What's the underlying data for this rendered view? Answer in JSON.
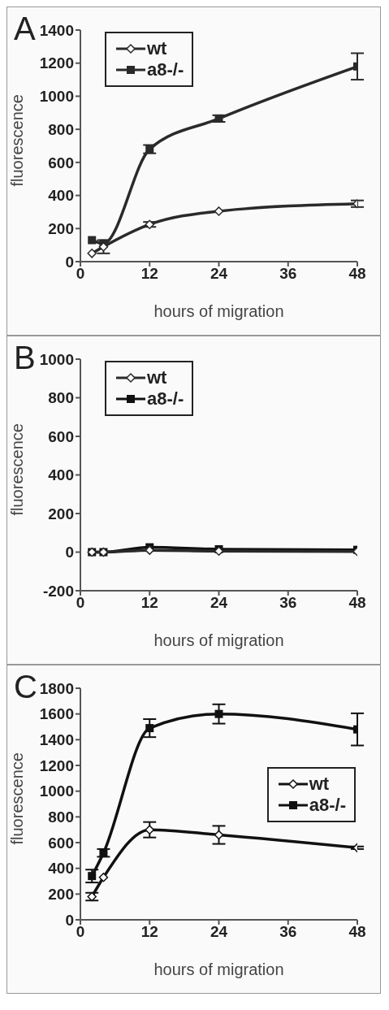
{
  "chart_data": [
    {
      "type": "line",
      "title": "A",
      "xlabel": "hours of migration",
      "ylabel": "fluorescence",
      "x": [
        2,
        4,
        12,
        24,
        48
      ],
      "xlim": [
        0,
        48
      ],
      "xticks": [
        0,
        12,
        24,
        36,
        48
      ],
      "ylim": [
        0,
        1400
      ],
      "yticks": [
        0,
        200,
        400,
        600,
        800,
        1000,
        1200,
        1400
      ],
      "legend": "top left",
      "grid": false,
      "series": [
        {
          "name": "wt",
          "color": "#2a2a2a",
          "marker": "diamond",
          "values": [
            50,
            90,
            225,
            305,
            350
          ],
          "errors": [
            null,
            40,
            15,
            null,
            20
          ]
        },
        {
          "name": "a8-/-",
          "color": "#2a2a2a",
          "marker": "square",
          "values": [
            130,
            110,
            680,
            865,
            1180
          ],
          "errors": [
            null,
            null,
            25,
            20,
            80
          ]
        }
      ]
    },
    {
      "type": "line",
      "title": "B",
      "xlabel": "hours of migration",
      "ylabel": "fluorescence",
      "x": [
        2,
        4,
        12,
        24,
        48
      ],
      "xlim": [
        0,
        48
      ],
      "xticks": [
        0,
        12,
        24,
        36,
        48
      ],
      "ylim": [
        -200,
        1000
      ],
      "yticks": [
        -200,
        0,
        200,
        400,
        600,
        800,
        1000
      ],
      "legend": "top left",
      "grid": false,
      "series": [
        {
          "name": "wt",
          "color": "#2a2a2a",
          "marker": "diamond",
          "values": [
            0,
            0,
            10,
            5,
            3
          ]
        },
        {
          "name": "a8-/-",
          "color": "#111111",
          "marker": "square",
          "values": [
            0,
            0,
            25,
            15,
            12
          ]
        }
      ]
    },
    {
      "type": "line",
      "title": "C",
      "xlabel": "hours of migration",
      "ylabel": "fluorescence",
      "x": [
        2,
        4,
        12,
        24,
        48
      ],
      "xlim": [
        0,
        48
      ],
      "xticks": [
        0,
        12,
        24,
        36,
        48
      ],
      "ylim": [
        0,
        1800
      ],
      "yticks": [
        0,
        200,
        400,
        600,
        800,
        1000,
        1200,
        1400,
        1600,
        1800
      ],
      "legend": "top right",
      "grid": false,
      "series": [
        {
          "name": "wt",
          "color": "#111111",
          "marker": "diamond",
          "values": [
            180,
            330,
            700,
            660,
            560
          ],
          "errors": [
            30,
            null,
            60,
            70,
            10
          ]
        },
        {
          "name": "a8-/-",
          "color": "#111111",
          "marker": "square",
          "values": [
            340,
            520,
            1490,
            1600,
            1480
          ],
          "errors": [
            50,
            30,
            70,
            75,
            125
          ]
        }
      ]
    }
  ]
}
